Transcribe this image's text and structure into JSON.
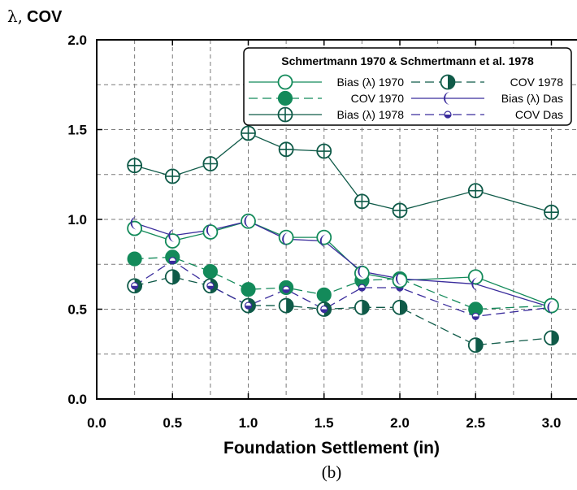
{
  "chart_data": {
    "type": "line",
    "title": "",
    "ylabel_symbol": "λ,",
    "ylabel_text": "COV",
    "xlabel": "Foundation Settlement (in)",
    "caption": "(b)",
    "xlim": [
      0,
      3.25
    ],
    "ylim": [
      0,
      2.0
    ],
    "xticks": [
      0.0,
      0.5,
      1.0,
      1.5,
      2.0,
      2.5,
      3.0
    ],
    "xtick_labels": [
      "0.0",
      "0.5",
      "1.0",
      "1.5",
      "2.0",
      "2.5",
      "3.0"
    ],
    "yticks": [
      0.0,
      0.5,
      1.0,
      1.5,
      2.0
    ],
    "ytick_labels": [
      "0.0",
      "0.5",
      "1.0",
      "1.5",
      "2.0"
    ],
    "grid": true,
    "legend": {
      "title": "Schmertmann 1970 & Schmertmann et al. 1978",
      "placement": "top-right"
    },
    "series": [
      {
        "name": "Bias (λ) 1970",
        "marker": "open-circle",
        "dashed": false,
        "color": "#138a5a",
        "x": [
          0.25,
          0.5,
          0.75,
          1.0,
          1.25,
          1.5,
          1.75,
          2.0,
          2.5,
          3.0
        ],
        "y": [
          0.95,
          0.88,
          0.93,
          0.99,
          0.9,
          0.9,
          0.7,
          0.66,
          0.68,
          0.52
        ]
      },
      {
        "name": "COV 1970",
        "marker": "filled-circle",
        "dashed": true,
        "color": "#138a5a",
        "x": [
          0.25,
          0.5,
          0.75,
          1.0,
          1.25,
          1.5,
          1.75,
          2.0,
          2.5,
          3.0
        ],
        "y": [
          0.78,
          0.79,
          0.71,
          0.61,
          0.62,
          0.58,
          0.66,
          0.67,
          0.5,
          0.52
        ]
      },
      {
        "name": "Bias (λ) 1978",
        "marker": "crossed-circle",
        "dashed": false,
        "color": "#0f5a48",
        "x": [
          0.25,
          0.5,
          0.75,
          1.0,
          1.25,
          1.5,
          1.75,
          2.0,
          2.5,
          3.0
        ],
        "y": [
          1.3,
          1.24,
          1.31,
          1.48,
          1.39,
          1.38,
          1.1,
          1.05,
          1.16,
          1.04
        ]
      },
      {
        "name": "COV 1978",
        "marker": "half-circle",
        "dashed": true,
        "color": "#0f5a48",
        "x": [
          0.25,
          0.5,
          0.75,
          1.0,
          1.25,
          1.5,
          1.75,
          2.0,
          2.5,
          3.0
        ],
        "y": [
          0.63,
          0.68,
          0.63,
          0.52,
          0.52,
          0.5,
          0.51,
          0.51,
          0.3,
          0.34
        ]
      },
      {
        "name": "Bias (λ) Das",
        "marker": "crescent",
        "dashed": false,
        "color": "#3a2c9c",
        "x": [
          0.25,
          0.5,
          0.75,
          1.0,
          1.25,
          1.5,
          1.75,
          2.0,
          2.5,
          3.0
        ],
        "y": [
          0.98,
          0.91,
          0.94,
          0.99,
          0.89,
          0.88,
          0.71,
          0.67,
          0.64,
          0.51
        ]
      },
      {
        "name": "COV Das",
        "marker": "small-half-dot",
        "dashed": true,
        "color": "#3a2c9c",
        "x": [
          0.25,
          0.5,
          0.75,
          1.0,
          1.25,
          1.5,
          1.75,
          2.0,
          2.5,
          3.0
        ],
        "y": [
          0.63,
          0.77,
          0.63,
          0.52,
          0.61,
          0.5,
          0.62,
          0.62,
          0.46,
          0.51
        ]
      }
    ]
  }
}
